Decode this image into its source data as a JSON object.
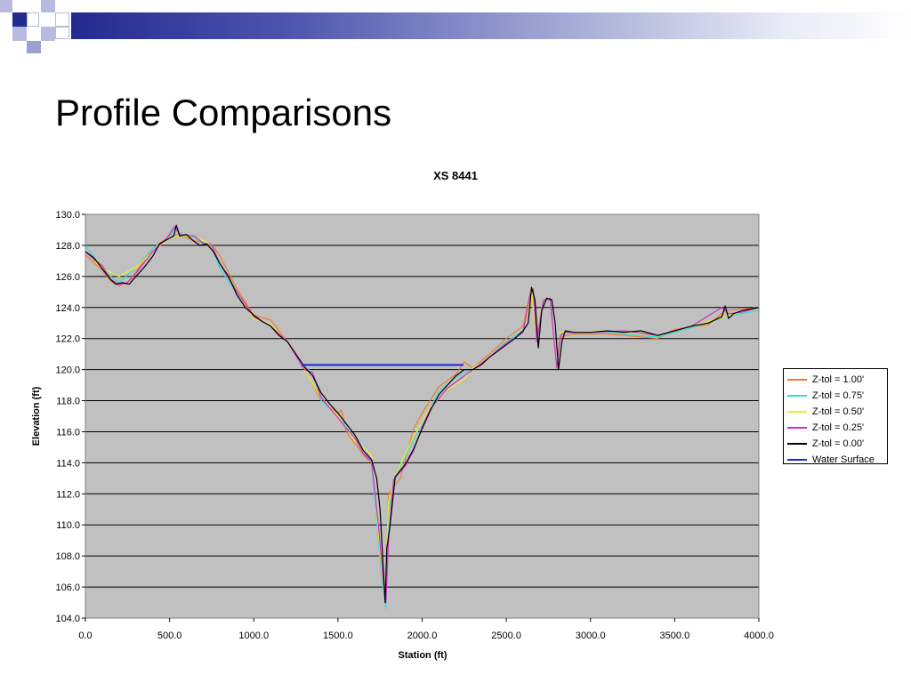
{
  "slide": {
    "title": "Profile Comparisons"
  },
  "theme": {
    "band_dark": "#232a8f",
    "band_mid": "#5a62b5",
    "band_light": "#b7bbe0",
    "plot_bg": "#c0c0c0",
    "grid": "#000000"
  },
  "chart_data": {
    "type": "line",
    "title": "XS 8441",
    "xlabel": "Station (ft)",
    "ylabel": "Elevation (ft)",
    "xlim": [
      0,
      4000
    ],
    "ylim": [
      104,
      130
    ],
    "x_ticks": [
      0,
      500,
      1000,
      1500,
      2000,
      2500,
      3000,
      3500,
      4000
    ],
    "y_ticks": [
      104,
      106,
      108,
      110,
      112,
      114,
      116,
      118,
      120,
      122,
      124,
      126,
      128,
      130
    ],
    "x_tick_labels": [
      "0.0",
      "500.0",
      "1000.0",
      "1500.0",
      "2000.0",
      "2500.0",
      "3000.0",
      "3500.0",
      "4000.0"
    ],
    "y_tick_labels": [
      "104.0",
      "106.0",
      "108.0",
      "110.0",
      "112.0",
      "114.0",
      "116.0",
      "118.0",
      "120.0",
      "122.0",
      "124.0",
      "126.0",
      "128.0",
      "130.0"
    ],
    "grid": true,
    "legend_position": "right",
    "series": [
      {
        "name": "Z-tol = 1.00'",
        "color": "#f07c2a",
        "x": [
          0,
          100,
          150,
          200,
          250,
          300,
          400,
          500,
          550,
          650,
          750,
          800,
          900,
          1000,
          1100,
          1200,
          1300,
          1400,
          1500,
          1520,
          1550,
          1650,
          1700,
          1760,
          1780,
          1800,
          1870,
          1950,
          2000,
          2100,
          2200,
          2250,
          2300,
          2400,
          2500,
          2600,
          2650,
          2680,
          2720,
          2760,
          2800,
          2820,
          2900,
          3100,
          3400,
          3500,
          3700,
          3800,
          4000
        ],
        "y": [
          127.4,
          126.4,
          125.7,
          125.4,
          125.6,
          126.3,
          127.8,
          128.6,
          128.7,
          128.3,
          128.1,
          127.3,
          125.2,
          123.5,
          123.2,
          121.8,
          120.1,
          118.0,
          117.2,
          117.4,
          116.0,
          114.5,
          114.0,
          107.0,
          105.2,
          112.0,
          113.0,
          116.2,
          117.2,
          118.9,
          119.7,
          120.5,
          120.1,
          121.0,
          122.0,
          122.8,
          125.3,
          122.0,
          124.5,
          124.6,
          120.1,
          122.1,
          122.3,
          122.3,
          122.0,
          122.6,
          122.9,
          123.8,
          124.0
        ]
      },
      {
        "name": "Z-tol = 0.75'",
        "color": "#33dede",
        "x": [
          0,
          100,
          150,
          200,
          300,
          400,
          500,
          530,
          560,
          650,
          750,
          800,
          900,
          1000,
          1100,
          1200,
          1300,
          1350,
          1400,
          1500,
          1600,
          1700,
          1760,
          1785,
          1800,
          1850,
          1950,
          2000,
          2100,
          2200,
          2300,
          2400,
          2500,
          2600,
          2650,
          2680,
          2720,
          2760,
          2800,
          2820,
          2900,
          3100,
          3400,
          3600,
          3800,
          4000
        ],
        "y": [
          128.0,
          126.5,
          126.0,
          125.6,
          126.6,
          127.8,
          128.5,
          129.1,
          128.8,
          128.5,
          127.9,
          126.5,
          124.9,
          123.4,
          122.8,
          121.8,
          120.2,
          119.8,
          118.0,
          117.0,
          115.6,
          114.0,
          106.5,
          104.6,
          111.0,
          113.3,
          115.5,
          116.6,
          118.6,
          119.5,
          120.1,
          120.8,
          121.8,
          122.5,
          125.1,
          121.8,
          124.4,
          124.5,
          120.2,
          122.3,
          122.4,
          122.4,
          122.1,
          122.7,
          123.4,
          123.8
        ]
      },
      {
        "name": "Z-tol = 0.50'",
        "color": "#f0f020",
        "x": [
          0,
          100,
          200,
          300,
          400,
          500,
          540,
          650,
          750,
          800,
          900,
          1000,
          1100,
          1200,
          1300,
          1400,
          1500,
          1600,
          1700,
          1760,
          1780,
          1800,
          1850,
          1950,
          2050,
          2150,
          2250,
          2300,
          2400,
          2500,
          2600,
          2650,
          2680,
          2720,
          2760,
          2800,
          2820,
          2900,
          3100,
          3400,
          3600,
          3800,
          4000
        ],
        "y": [
          127.6,
          126.5,
          126.0,
          126.6,
          127.6,
          128.5,
          128.6,
          128.6,
          128.0,
          126.8,
          125.0,
          123.3,
          122.9,
          121.8,
          120.0,
          118.2,
          117.0,
          115.4,
          114.5,
          107.0,
          105.3,
          111.5,
          113.4,
          115.7,
          117.6,
          118.7,
          119.4,
          120.1,
          120.8,
          121.7,
          122.4,
          125.0,
          121.8,
          124.4,
          124.6,
          120.1,
          122.4,
          122.4,
          122.5,
          122.2,
          122.8,
          123.4,
          124.0
        ]
      },
      {
        "name": "Z-tol = 0.25'",
        "color": "#d528d5",
        "x": [
          0,
          50,
          100,
          150,
          200,
          250,
          300,
          400,
          480,
          530,
          560,
          650,
          700,
          750,
          800,
          900,
          1000,
          1100,
          1200,
          1300,
          1350,
          1400,
          1500,
          1550,
          1600,
          1650,
          1700,
          1740,
          1770,
          1785,
          1800,
          1830,
          1860,
          1900,
          1950,
          2000,
          2050,
          2150,
          2250,
          2300,
          2400,
          2500,
          2600,
          2640,
          2660,
          2680,
          2720,
          2760,
          2800,
          2820,
          2850,
          3000,
          3200,
          3400,
          3600,
          3780,
          3820,
          3900,
          4000
        ],
        "y": [
          127.6,
          127.1,
          126.7,
          125.8,
          125.5,
          125.6,
          126.2,
          127.6,
          128.4,
          129.2,
          128.7,
          128.6,
          128.1,
          128.0,
          126.8,
          125.0,
          123.4,
          122.8,
          121.8,
          120.0,
          119.8,
          118.2,
          116.9,
          116.2,
          115.6,
          114.6,
          114.1,
          110.0,
          106.3,
          105.0,
          109.0,
          112.9,
          113.3,
          113.8,
          114.8,
          116.3,
          117.5,
          118.8,
          119.6,
          120.0,
          120.8,
          121.7,
          122.4,
          124.8,
          125.2,
          121.8,
          124.4,
          124.6,
          120.1,
          122.2,
          122.4,
          122.4,
          122.5,
          122.2,
          122.8,
          124.0,
          123.6,
          123.7,
          124.0
        ]
      },
      {
        "name": "Z-tol = 0.00'",
        "color": "#000000",
        "x": [
          0,
          50,
          100,
          150,
          180,
          220,
          260,
          300,
          350,
          400,
          440,
          490,
          525,
          540,
          560,
          600,
          640,
          680,
          720,
          760,
          800,
          850,
          900,
          950,
          1000,
          1050,
          1100,
          1150,
          1200,
          1250,
          1300,
          1350,
          1400,
          1450,
          1500,
          1550,
          1600,
          1650,
          1700,
          1730,
          1750,
          1770,
          1780,
          1790,
          1810,
          1840,
          1870,
          1900,
          1950,
          2000,
          2050,
          2100,
          2150,
          2200,
          2250,
          2300,
          2350,
          2400,
          2450,
          2500,
          2550,
          2600,
          2630,
          2650,
          2670,
          2690,
          2710,
          2740,
          2770,
          2790,
          2810,
          2830,
          2850,
          2900,
          3000,
          3100,
          3200,
          3300,
          3400,
          3500,
          3600,
          3700,
          3780,
          3800,
          3820,
          3850,
          3900,
          3950,
          4000
        ],
        "y": [
          127.6,
          127.2,
          126.5,
          125.8,
          125.5,
          125.6,
          125.5,
          126.0,
          126.6,
          127.3,
          128.1,
          128.4,
          128.6,
          129.3,
          128.6,
          128.7,
          128.3,
          128.0,
          128.1,
          127.6,
          126.8,
          126.0,
          124.8,
          124.0,
          123.5,
          123.1,
          122.8,
          122.2,
          121.8,
          121.0,
          120.2,
          119.6,
          118.5,
          117.8,
          117.2,
          116.5,
          115.8,
          114.8,
          114.2,
          113.0,
          111.0,
          107.0,
          105.0,
          108.5,
          110.0,
          113.1,
          113.5,
          113.9,
          114.9,
          116.2,
          117.4,
          118.4,
          119.0,
          119.6,
          120.0,
          120.0,
          120.3,
          120.8,
          121.2,
          121.6,
          122.0,
          122.5,
          123.0,
          125.3,
          124.5,
          121.4,
          123.8,
          124.6,
          124.5,
          123.0,
          120.0,
          121.8,
          122.5,
          122.4,
          122.4,
          122.5,
          122.4,
          122.5,
          122.2,
          122.5,
          122.8,
          123.0,
          123.4,
          124.1,
          123.3,
          123.6,
          123.8,
          123.9,
          124.0
        ]
      },
      {
        "name": "Water Surface",
        "color": "#1428d8",
        "x": [
          1285,
          2245
        ],
        "y": [
          120.3,
          120.3
        ]
      }
    ]
  }
}
